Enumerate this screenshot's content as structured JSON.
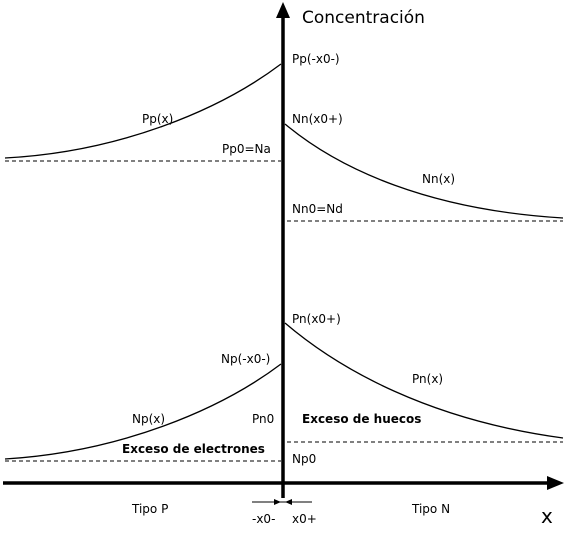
{
  "axes": {
    "y_title": "Concentración",
    "x_title": "x"
  },
  "upper": {
    "pp_peak": "Pp(-x0-)",
    "pp_curve": "Pp(x)",
    "pp0": "Pp0=Na",
    "nn_peak": "Nn(x0+)",
    "nn_curve": "Nn(x)",
    "nn0": "Nn0=Nd"
  },
  "lower": {
    "pn_peak": "Pn(x0+)",
    "np_peak": "Np(-x0-)",
    "pn_curve": "Pn(x)",
    "np_curve": "Np(x)",
    "pn0": "Pn0",
    "np0": "Np0",
    "hole_excess": "Exceso de huecos",
    "electron_excess": "Exceso de electrones"
  },
  "regions": {
    "p_type": "Tipo P",
    "n_type": "Tipo N",
    "left_edge": "-x0-",
    "right_edge": "x0+"
  }
}
